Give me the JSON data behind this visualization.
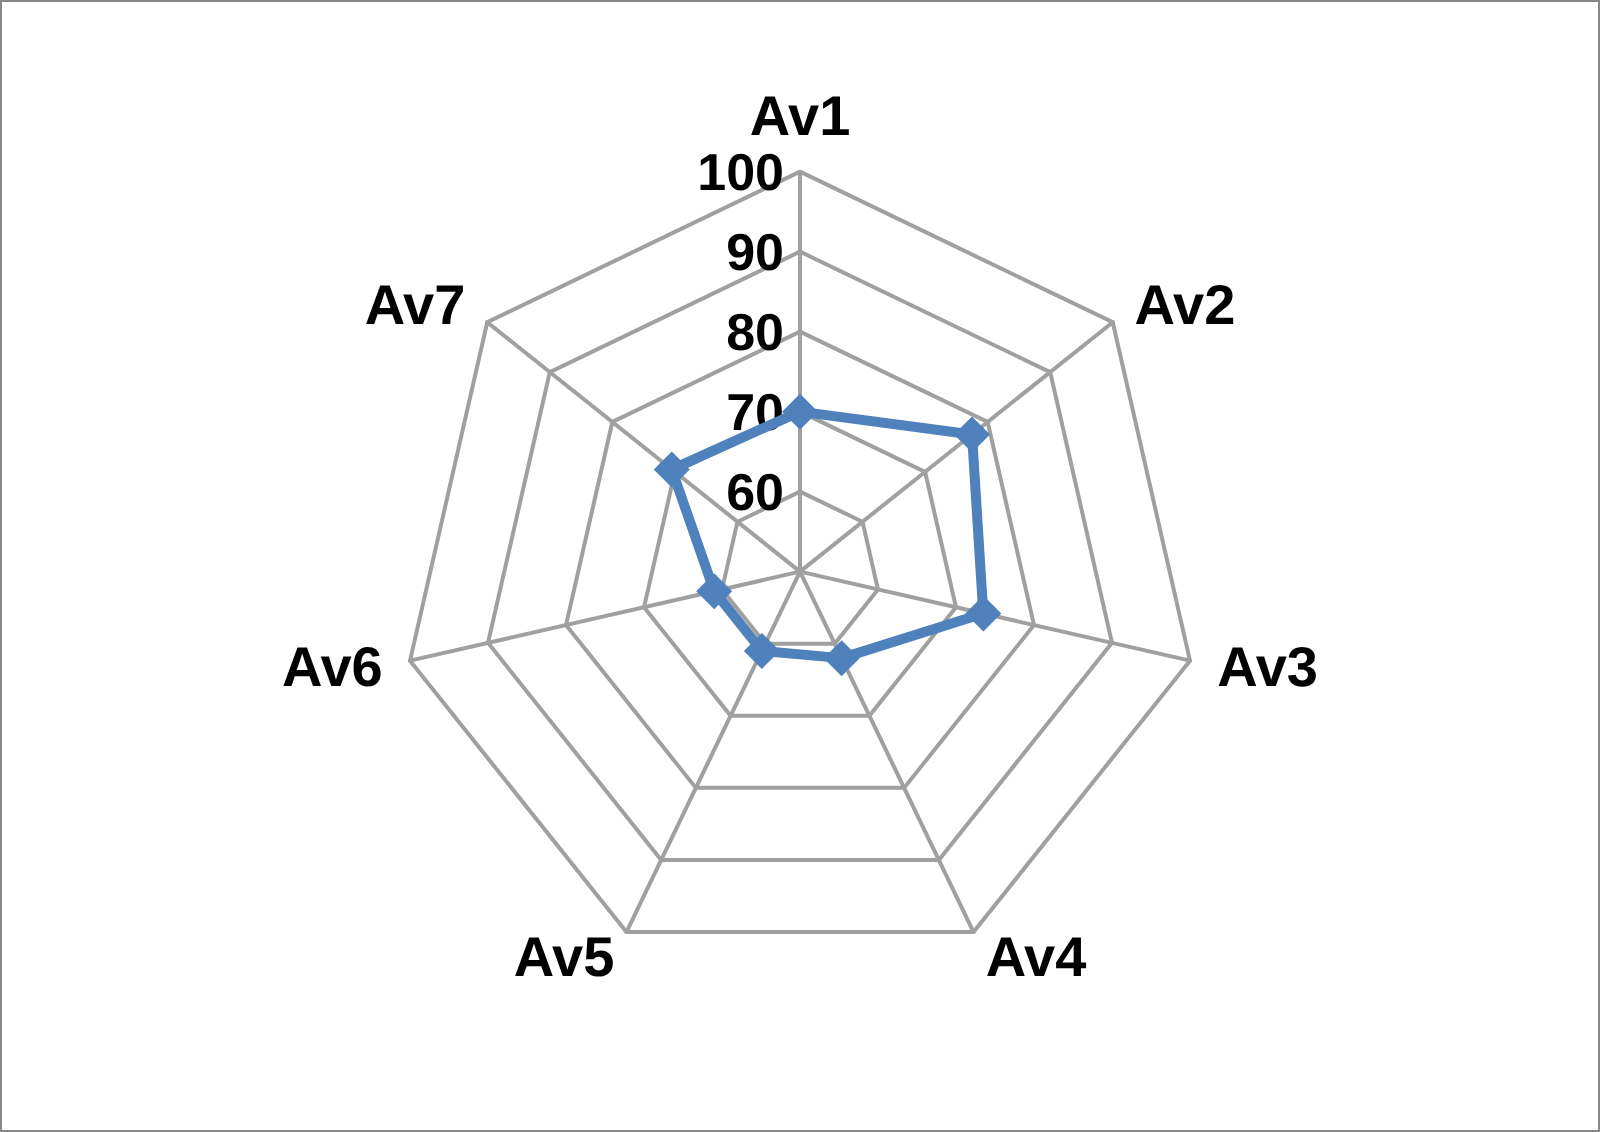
{
  "chart_data": {
    "type": "radar",
    "categories": [
      "Av1",
      "Av2",
      "Av3",
      "Av4",
      "Av5",
      "Av6",
      "Av7"
    ],
    "series": [
      {
        "color": "#4f81bd",
        "values": [
          70,
          77.5,
          73.5,
          62,
          61,
          61,
          70.5
        ]
      }
    ],
    "ylim": [
      50,
      100
    ],
    "yticks": [
      60,
      70,
      80,
      90,
      100
    ],
    "marker": "diamond",
    "line_style": "solid",
    "grid": true
  }
}
